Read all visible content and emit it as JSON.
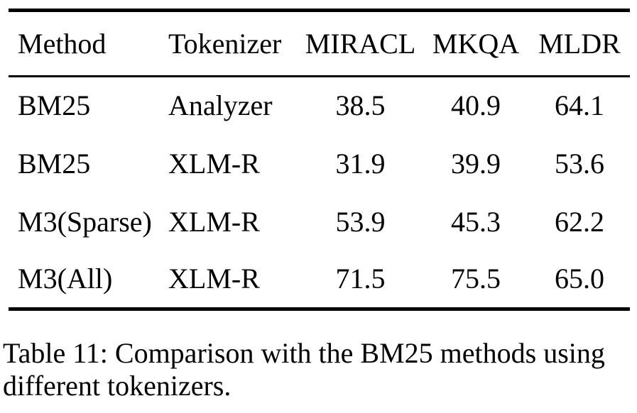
{
  "table": {
    "columns": [
      "Method",
      "Tokenizer",
      "MIRACL",
      "MKQA",
      "MLDR"
    ],
    "rows": [
      [
        "BM25",
        "Analyzer",
        "38.5",
        "40.9",
        "64.1"
      ],
      [
        "BM25",
        "XLM-R",
        "31.9",
        "39.9",
        "53.6"
      ],
      [
        "M3(Sparse)",
        "XLM-R",
        "53.9",
        "45.3",
        "62.2"
      ],
      [
        "M3(All)",
        "XLM-R",
        "71.5",
        "75.5",
        "65.0"
      ]
    ]
  },
  "caption": {
    "text": "Table 11: Comparison with the BM25 methods using different tokenizers."
  },
  "colors": {
    "text": "#000000",
    "background": "#ffffff",
    "rule": "#000000"
  },
  "chart_data": {
    "type": "table",
    "title": "Table 11: Comparison with the BM25 methods using different tokenizers.",
    "columns": [
      "Method",
      "Tokenizer",
      "MIRACL",
      "MKQA",
      "MLDR"
    ],
    "rows": [
      {
        "Method": "BM25",
        "Tokenizer": "Analyzer",
        "MIRACL": 38.5,
        "MKQA": 40.9,
        "MLDR": 64.1
      },
      {
        "Method": "BM25",
        "Tokenizer": "XLM-R",
        "MIRACL": 31.9,
        "MKQA": 39.9,
        "MLDR": 53.6
      },
      {
        "Method": "M3(Sparse)",
        "Tokenizer": "XLM-R",
        "MIRACL": 53.9,
        "MKQA": 45.3,
        "MLDR": 62.2
      },
      {
        "Method": "M3(All)",
        "Tokenizer": "XLM-R",
        "MIRACL": 71.5,
        "MKQA": 75.5,
        "MLDR": 65.0
      }
    ]
  }
}
